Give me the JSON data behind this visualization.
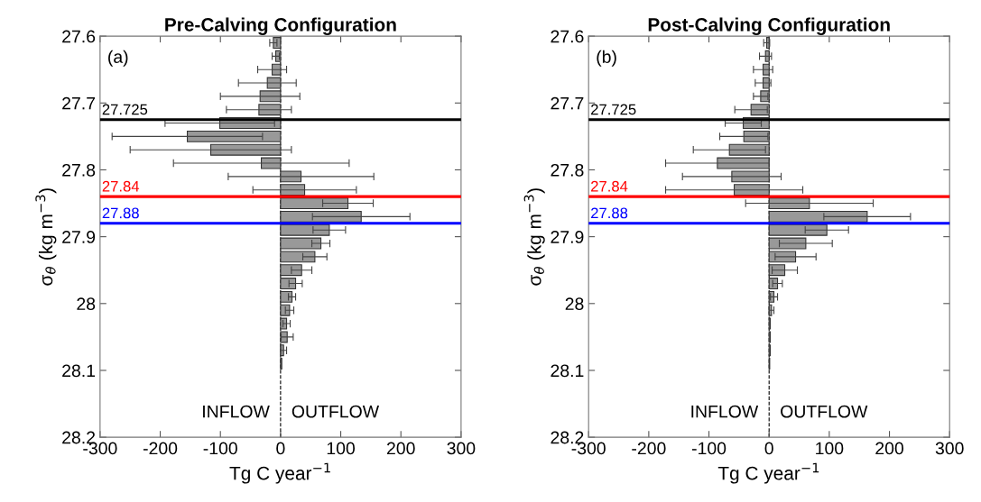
{
  "chart_data": [
    {
      "type": "bar",
      "orientation": "horizontal",
      "title": "Pre-Calving Configuration",
      "xlabel": "Tg C year$^{−1}$",
      "ylabel": "σ$_{θ}$ (kg m$^{−3}$)",
      "x": [
        27.61,
        27.63,
        27.65,
        27.67,
        27.69,
        27.71,
        27.73,
        27.75,
        27.77,
        27.79,
        27.81,
        27.83,
        27.85,
        27.87,
        27.89,
        27.91,
        27.93,
        27.95,
        27.97,
        27.99,
        28.01,
        28.03,
        28.05,
        28.07,
        28.09
      ],
      "series": [
        {
          "color": "#999999",
          "values": [
            -12,
            -8,
            -14,
            -22,
            -34,
            -36,
            -101,
            -155,
            -116,
            -32,
            34,
            40,
            112,
            134,
            81,
            67,
            57,
            35,
            25,
            19,
            15,
            10,
            11,
            5,
            2
          ],
          "errors": [
            6,
            6,
            24,
            48,
            66,
            54,
            91,
            125,
            134,
            146,
            121,
            86,
            42,
            81,
            27,
            15,
            20,
            17,
            11,
            6,
            7,
            6,
            10,
            5,
            null
          ]
        }
      ],
      "xlim": [
        -300,
        300
      ],
      "xticks": [
        -300,
        -200,
        -100,
        0,
        100,
        200,
        300
      ],
      "ylim": [
        28.2,
        27.6
      ],
      "yticks": [
        27.6,
        27.7,
        27.8,
        27.9,
        28,
        28.1,
        28.2
      ],
      "ref_lines": [
        {
          "axis": "y",
          "value": 27.725,
          "label": "27.725",
          "color": "#000000"
        },
        {
          "axis": "y",
          "value": 27.84,
          "label": "27.84",
          "color": "#ff0000"
        },
        {
          "axis": "y",
          "value": 27.88,
          "label": "27.88",
          "color": "#0000ff"
        },
        {
          "axis": "x",
          "value": 0,
          "color": "#000000",
          "line_style": "dashed"
        }
      ],
      "annotations": [
        "(a)",
        "INFLOW",
        "OUTFLOW"
      ],
      "grid": false,
      "legend": false
    },
    {
      "type": "bar",
      "orientation": "horizontal",
      "title": "Post-Calving Configuration",
      "xlabel": "Tg C year$^{−1}$",
      "ylabel": "σ$_{θ}$ (kg m$^{−3}$)",
      "x": [
        27.61,
        27.63,
        27.65,
        27.67,
        27.69,
        27.71,
        27.73,
        27.75,
        27.77,
        27.79,
        27.81,
        27.83,
        27.85,
        27.87,
        27.89,
        27.91,
        27.93,
        27.95,
        27.97,
        27.99,
        28.01,
        28.03,
        28.05,
        28.07,
        28.09
      ],
      "series": [
        {
          "color": "#999999",
          "values": [
            -4,
            -6,
            -10,
            -10,
            -14,
            -30,
            -43,
            -42,
            -66,
            -86,
            -62,
            -58,
            67,
            163,
            96,
            61,
            44,
            26,
            14,
            8,
            4,
            2,
            2,
            2,
            1
          ],
          "errors": [
            5,
            10,
            16,
            13,
            12,
            27,
            30,
            40,
            60,
            86,
            82,
            114,
            106,
            72,
            36,
            44,
            34,
            21,
            8,
            6,
            4,
            null,
            null,
            null,
            null
          ]
        }
      ],
      "xlim": [
        -300,
        300
      ],
      "xticks": [
        -300,
        -200,
        -100,
        0,
        100,
        200,
        300
      ],
      "ylim": [
        28.2,
        27.6
      ],
      "yticks": [
        27.6,
        27.7,
        27.8,
        27.9,
        28,
        28.1,
        28.2
      ],
      "ref_lines": [
        {
          "axis": "y",
          "value": 27.725,
          "label": "27.725",
          "color": "#000000"
        },
        {
          "axis": "y",
          "value": 27.84,
          "label": "27.84",
          "color": "#ff0000"
        },
        {
          "axis": "y",
          "value": 27.88,
          "label": "27.88",
          "color": "#0000ff"
        },
        {
          "axis": "x",
          "value": 0,
          "color": "#000000",
          "line_style": "dashed"
        }
      ],
      "annotations": [
        "(b)",
        "INFLOW",
        "OUTFLOW"
      ],
      "grid": false,
      "legend": false
    }
  ]
}
